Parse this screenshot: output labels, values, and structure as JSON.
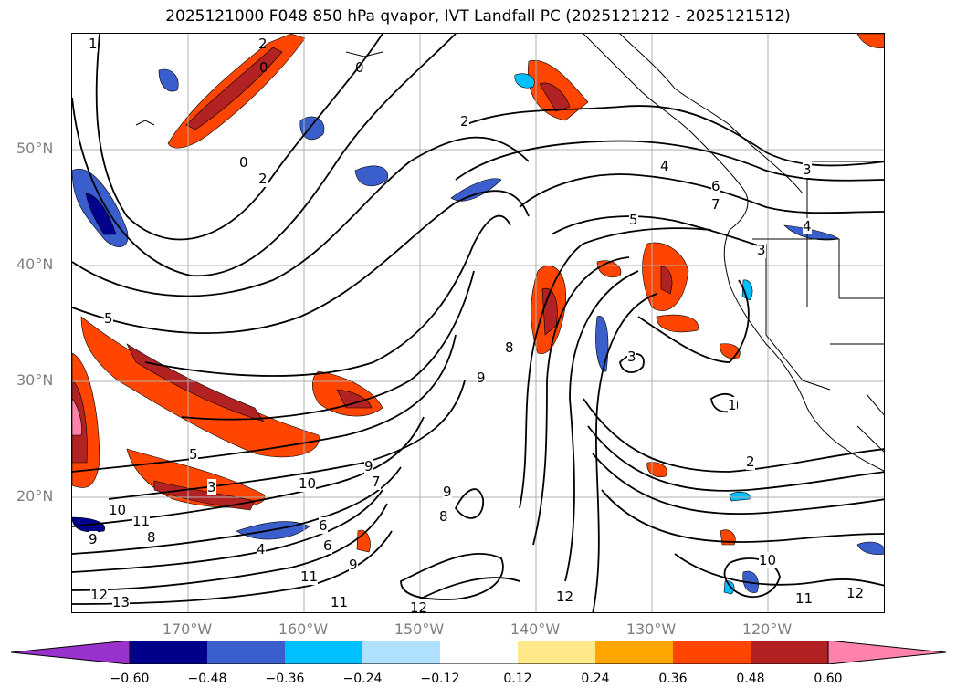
{
  "title": "2025121000 F048 850 hPa qvapor, IVT Landfall PC (2025121212 - 2025121512)",
  "lat_labels": [
    "50°N",
    "40°N",
    "30°N",
    "20°N"
  ],
  "lon_labels": [
    "170°W",
    "160°W",
    "150°W",
    "140°W",
    "130°W",
    "120°W"
  ],
  "colorbar": {
    "ticks": [
      "−0.60",
      "−0.48",
      "−0.36",
      "−0.24",
      "−0.12",
      "0.12",
      "0.24",
      "0.36",
      "0.48",
      "0.60"
    ],
    "colors": [
      "#9932cc",
      "#00008b",
      "#3a5fcd",
      "#00bfff",
      "#b0e0ff",
      "#ffffff",
      "#ffe88a",
      "#ffa500",
      "#ff4500",
      "#b22222",
      "#ff82ab"
    ]
  },
  "contour_labels": [
    "1",
    "2",
    "0",
    "0",
    "0",
    "2",
    "4",
    "6",
    "7",
    "5",
    "4",
    "3",
    "3",
    "2",
    "1",
    "8",
    "9",
    "9",
    "8",
    "9",
    "7",
    "6",
    "5",
    "5",
    "3",
    "10",
    "11",
    "10",
    "9",
    "8",
    "6",
    "4",
    "9",
    "11",
    "11",
    "12",
    "12",
    "13",
    "12",
    "11",
    "10",
    "12",
    "2",
    "3"
  ],
  "colors": {
    "contour": "#000000",
    "coast": "#000000",
    "grid": "#b0b0b0"
  }
}
